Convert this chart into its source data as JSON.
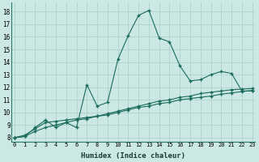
{
  "xlabel": "Humidex (Indice chaleur)",
  "bg_color": "#cce8e4",
  "line_color": "#1a6b5e",
  "x_ticks": [
    0,
    1,
    2,
    3,
    4,
    5,
    6,
    7,
    8,
    9,
    10,
    11,
    12,
    13,
    14,
    15,
    16,
    17,
    18,
    19,
    20,
    21,
    22,
    23
  ],
  "y_ticks": [
    8,
    9,
    10,
    11,
    12,
    13,
    14,
    15,
    16,
    17,
    18
  ],
  "ylim": [
    7.7,
    18.7
  ],
  "xlim": [
    -0.3,
    23.3
  ],
  "series1_x": [
    0,
    1,
    2,
    3,
    4,
    5,
    6,
    7,
    8,
    9,
    10,
    11,
    12,
    13,
    14,
    15,
    16,
    17,
    18,
    19,
    20,
    21,
    22,
    23
  ],
  "series1_y": [
    8.0,
    8.1,
    8.8,
    9.4,
    8.8,
    9.2,
    8.8,
    12.2,
    10.5,
    10.8,
    14.2,
    16.1,
    17.7,
    18.1,
    15.9,
    15.6,
    13.7,
    12.5,
    12.6,
    13.0,
    13.25,
    13.1,
    11.7,
    11.7
  ],
  "series2_x": [
    0,
    1,
    2,
    3,
    4,
    5,
    6,
    7,
    8,
    9,
    10,
    11,
    12,
    13,
    14,
    15,
    16,
    17,
    18,
    19,
    20,
    21,
    22,
    23
  ],
  "series2_y": [
    8.0,
    8.2,
    8.7,
    9.2,
    9.3,
    9.4,
    9.5,
    9.6,
    9.7,
    9.9,
    10.1,
    10.3,
    10.5,
    10.7,
    10.9,
    11.0,
    11.2,
    11.3,
    11.5,
    11.6,
    11.7,
    11.8,
    11.85,
    11.9
  ],
  "series3_x": [
    0,
    1,
    2,
    3,
    4,
    5,
    6,
    7,
    8,
    9,
    10,
    11,
    12,
    13,
    14,
    15,
    16,
    17,
    18,
    19,
    20,
    21,
    22,
    23
  ],
  "series3_y": [
    8.0,
    8.1,
    8.5,
    8.8,
    9.0,
    9.2,
    9.4,
    9.5,
    9.7,
    9.8,
    10.0,
    10.2,
    10.4,
    10.5,
    10.7,
    10.8,
    11.0,
    11.1,
    11.2,
    11.3,
    11.45,
    11.55,
    11.65,
    11.75
  ]
}
